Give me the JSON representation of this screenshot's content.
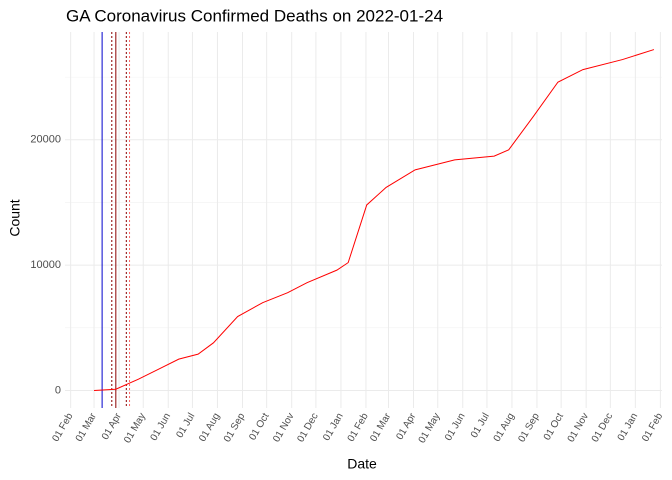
{
  "chart_data": {
    "type": "line",
    "title": "GA Coronavirus Confirmed Deaths on 2022-01-24",
    "x_label": "Date",
    "y_label": "Count",
    "x": [
      "2020-03-01",
      "2020-03-28",
      "2020-04-25",
      "2020-05-20",
      "2020-06-14",
      "2020-07-08",
      "2020-07-27",
      "2020-08-26",
      "2020-09-26",
      "2020-10-27",
      "2020-11-20",
      "2020-12-27",
      "2021-01-10",
      "2021-02-02",
      "2021-02-26",
      "2021-04-03",
      "2021-05-22",
      "2021-07-10",
      "2021-07-28",
      "2021-08-28",
      "2021-09-27",
      "2021-10-28",
      "2021-12-16",
      "2022-01-24"
    ],
    "series": [
      {
        "name": "Deaths",
        "color": "#ff0000",
        "values": [
          0,
          100,
          900,
          1700,
          2500,
          2900,
          3800,
          5900,
          7000,
          7800,
          8600,
          9600,
          10200,
          14800,
          16200,
          17600,
          18400,
          18700,
          19200,
          21900,
          24600,
          25600,
          26400,
          27200
        ]
      }
    ],
    "vlines": [
      {
        "date": "2020-03-11",
        "color": "#0000cc",
        "dash": false
      },
      {
        "date": "2020-03-23",
        "color": "#8b0000",
        "dash": true
      },
      {
        "date": "2020-03-28",
        "color": "#8b0000",
        "dash": false
      },
      {
        "date": "2020-04-10",
        "color": "#8b0000",
        "dash": true
      },
      {
        "date": "2020-04-14",
        "color": "#ff6666",
        "dash": true
      }
    ],
    "xlim": [
      "2020-01-25",
      "2022-02-03"
    ],
    "xticks": [
      {
        "value": "2020-02-01",
        "label": "01 Feb"
      },
      {
        "value": "2020-03-01",
        "label": "01 Mar"
      },
      {
        "value": "2020-04-01",
        "label": "01 Apr"
      },
      {
        "value": "2020-05-01",
        "label": "01 May"
      },
      {
        "value": "2020-06-01",
        "label": "01 Jun"
      },
      {
        "value": "2020-07-01",
        "label": "01 Jul"
      },
      {
        "value": "2020-08-01",
        "label": "01 Aug"
      },
      {
        "value": "2020-09-01",
        "label": "01 Sep"
      },
      {
        "value": "2020-10-01",
        "label": "01 Oct"
      },
      {
        "value": "2020-11-01",
        "label": "01 Nov"
      },
      {
        "value": "2020-12-01",
        "label": "01 Dec"
      },
      {
        "value": "2021-01-01",
        "label": "01 Jan"
      },
      {
        "value": "2021-02-01",
        "label": "01 Feb"
      },
      {
        "value": "2021-03-01",
        "label": "01 Mar"
      },
      {
        "value": "2021-04-01",
        "label": "01 Apr"
      },
      {
        "value": "2021-05-01",
        "label": "01 May"
      },
      {
        "value": "2021-06-01",
        "label": "01 Jun"
      },
      {
        "value": "2021-07-01",
        "label": "01 Jul"
      },
      {
        "value": "2021-08-01",
        "label": "01 Aug"
      },
      {
        "value": "2021-09-01",
        "label": "01 Sep"
      },
      {
        "value": "2021-10-01",
        "label": "01 Oct"
      },
      {
        "value": "2021-11-01",
        "label": "01 Nov"
      },
      {
        "value": "2021-12-01",
        "label": "01 Dec"
      },
      {
        "value": "2022-01-01",
        "label": "01 Jan"
      },
      {
        "value": "2022-02-01",
        "label": "01 Feb"
      }
    ],
    "ylim": [
      -1400,
      28600
    ],
    "yticks": [
      0,
      10000,
      20000
    ],
    "yminor": [
      5000,
      15000,
      25000
    ],
    "grid": true
  }
}
